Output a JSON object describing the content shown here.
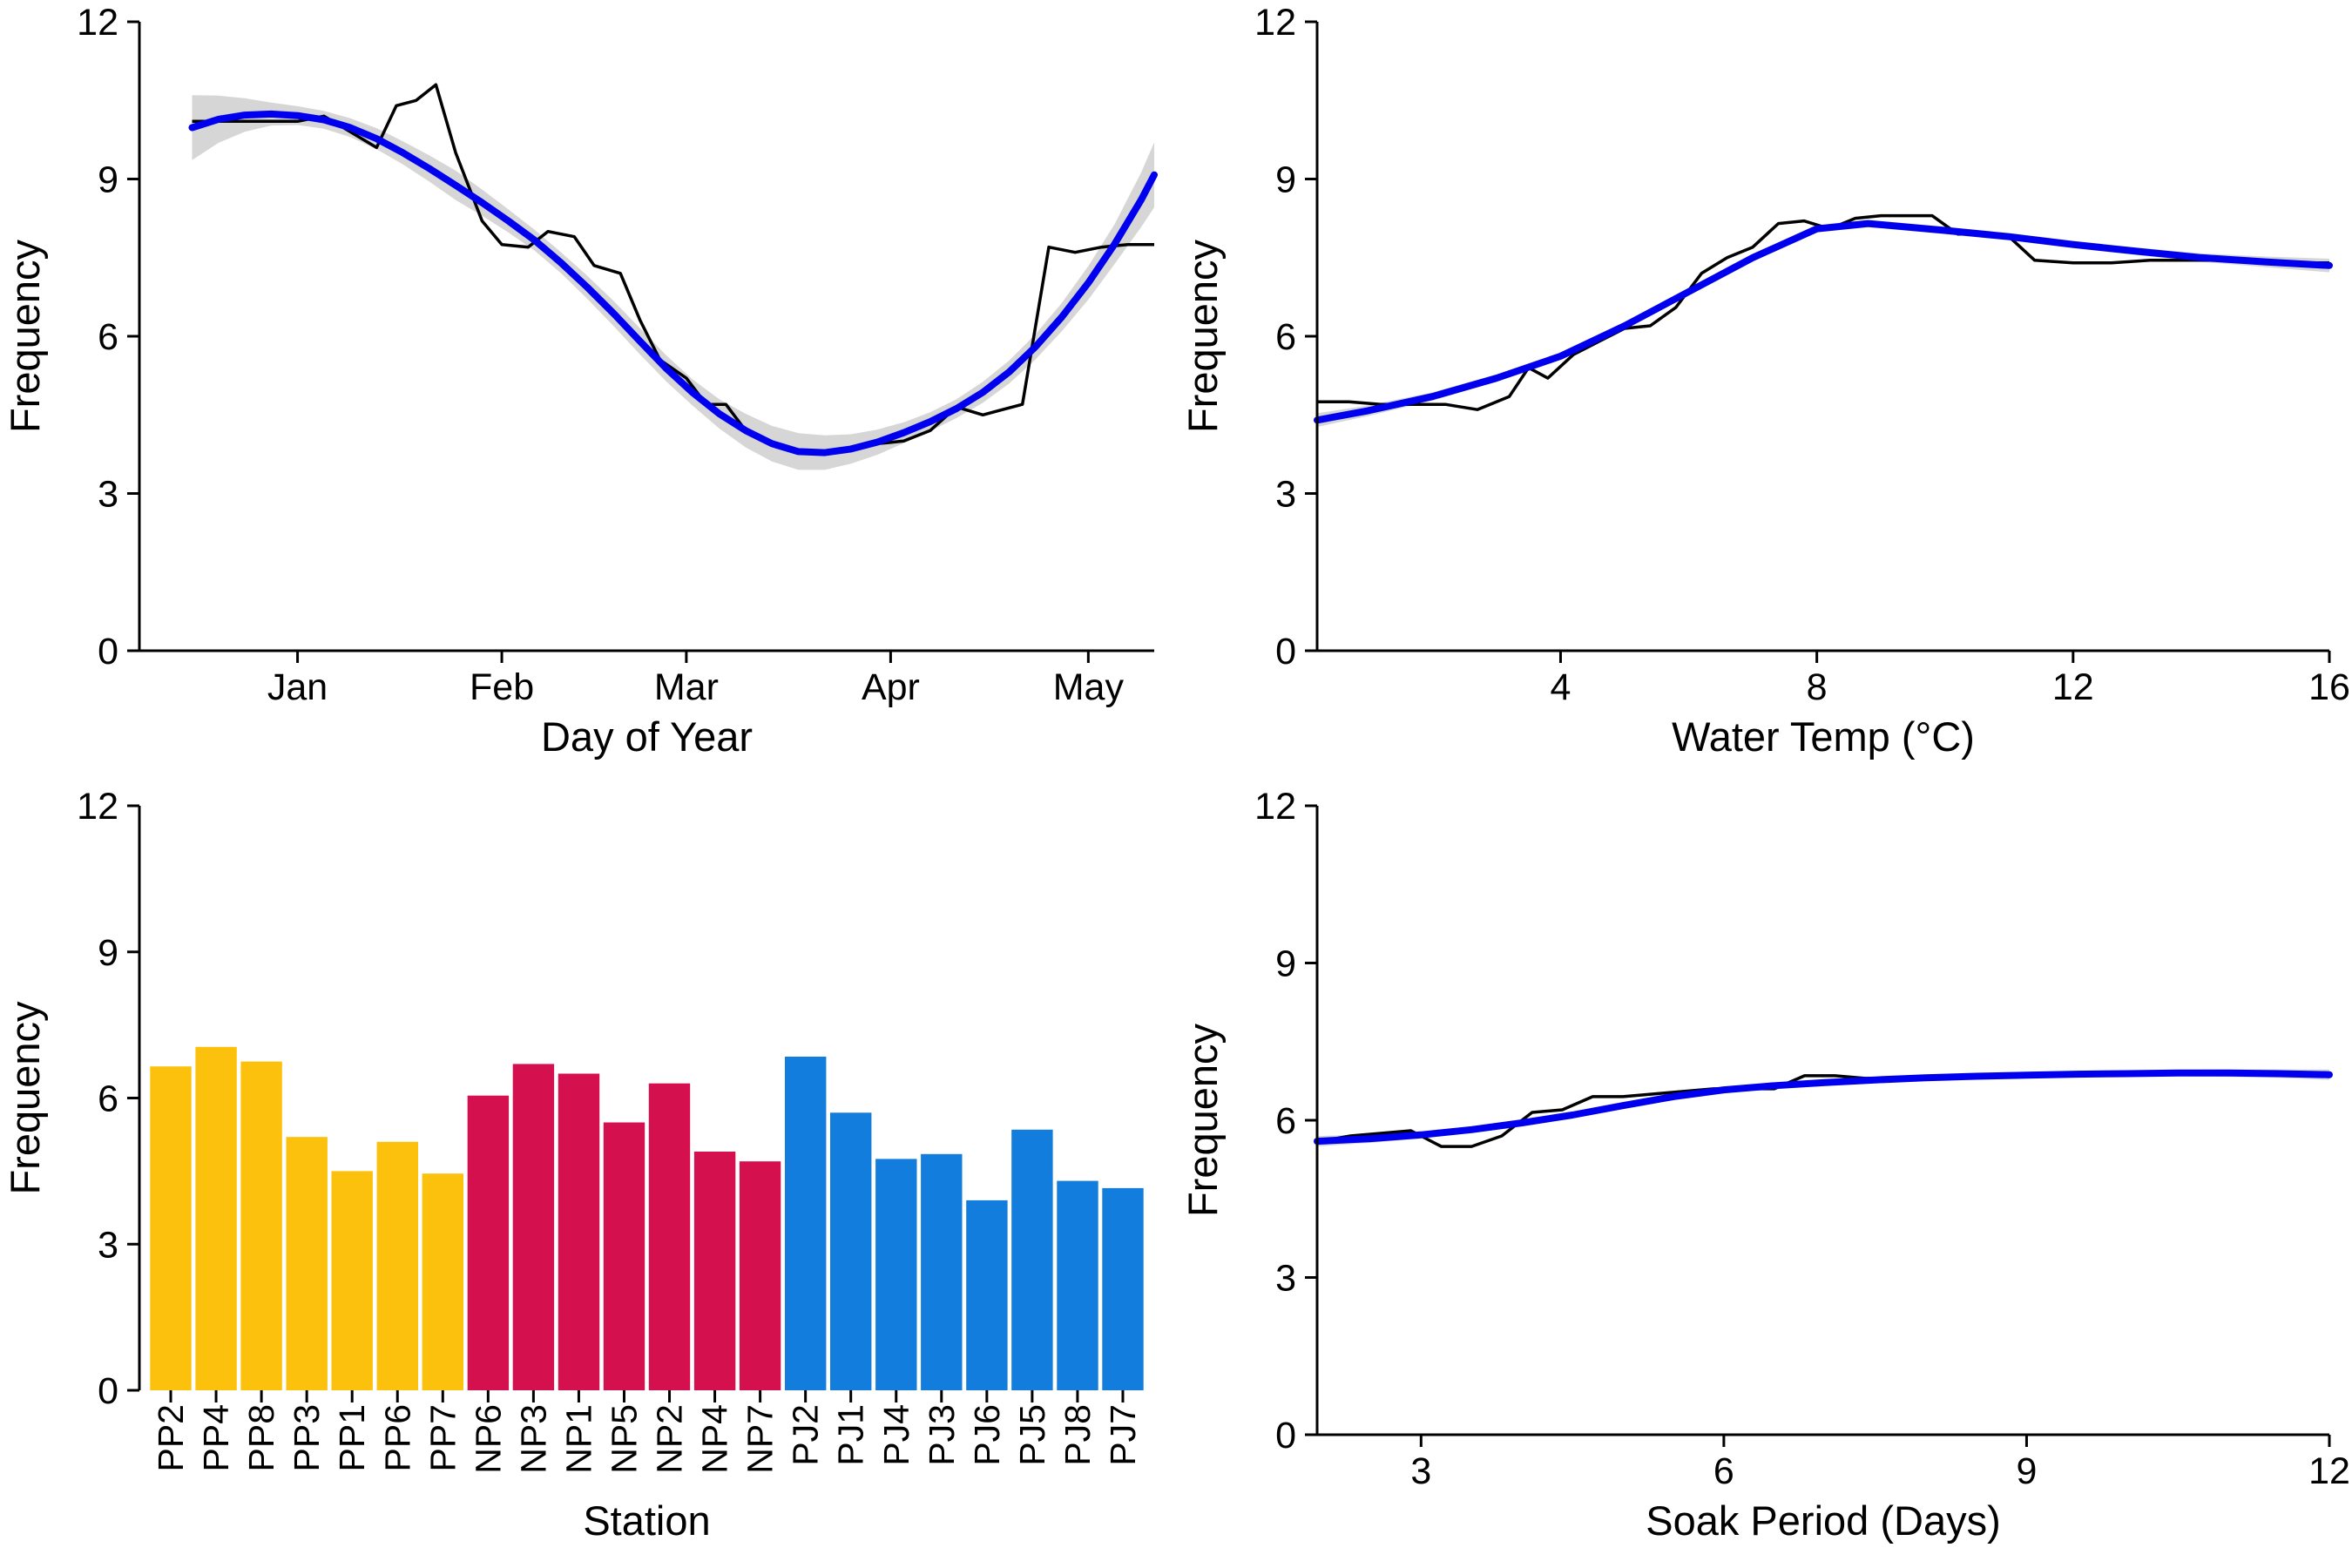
{
  "chart_data": [
    {
      "type": "line",
      "xlabel": "Day of Year",
      "ylabel": "Frequency",
      "ylim": [
        0,
        12
      ],
      "yticks": [
        0,
        3,
        6,
        9,
        12
      ],
      "xaxis_kind": "month_day",
      "xlim": [
        -24,
        130
      ],
      "xticks": [
        {
          "value": 0,
          "label": "Jan"
        },
        {
          "value": 31,
          "label": "Feb"
        },
        {
          "value": 59,
          "label": "Mar"
        },
        {
          "value": 90,
          "label": "Apr"
        },
        {
          "value": 120,
          "label": "May"
        }
      ],
      "grid": false,
      "series": [
        {
          "role": "observed",
          "color": "#000000",
          "x": [
            -16,
            -12,
            -8,
            -4,
            0,
            4,
            8,
            12,
            15,
            18,
            21,
            24,
            28,
            31,
            35,
            38,
            42,
            45,
            49,
            52,
            55,
            59,
            62,
            65,
            68,
            72,
            76,
            80,
            84,
            88,
            92,
            96,
            100,
            104,
            107,
            110,
            114,
            118,
            122,
            126,
            130
          ],
          "y": [
            10.1,
            10.1,
            10.1,
            10.1,
            10.1,
            10.2,
            9.9,
            9.6,
            10.4,
            10.5,
            10.8,
            9.5,
            8.2,
            7.75,
            7.7,
            8.0,
            7.9,
            7.35,
            7.2,
            6.3,
            5.55,
            5.2,
            4.7,
            4.7,
            4.2,
            3.95,
            3.8,
            3.8,
            3.85,
            3.95,
            4.0,
            4.2,
            4.65,
            4.5,
            4.6,
            4.7,
            7.7,
            7.6,
            7.7,
            7.75,
            7.75
          ]
        },
        {
          "role": "smoothed",
          "color": "#0000ee",
          "x": [
            -16,
            -12,
            -8,
            -4,
            0,
            4,
            8,
            12,
            16,
            20,
            24,
            28,
            32,
            36,
            40,
            44,
            48,
            52,
            56,
            60,
            64,
            68,
            72,
            76,
            80,
            84,
            88,
            92,
            96,
            100,
            104,
            108,
            112,
            116,
            120,
            124,
            128,
            130
          ],
          "y": [
            9.98,
            10.14,
            10.22,
            10.24,
            10.21,
            10.13,
            9.98,
            9.77,
            9.5,
            9.2,
            8.88,
            8.55,
            8.2,
            7.83,
            7.4,
            6.93,
            6.43,
            5.9,
            5.38,
            4.92,
            4.52,
            4.2,
            3.95,
            3.8,
            3.78,
            3.85,
            3.98,
            4.16,
            4.37,
            4.62,
            4.93,
            5.32,
            5.8,
            6.37,
            7.02,
            7.76,
            8.6,
            9.08
          ],
          "ci_half_width": [
            0.62,
            0.45,
            0.32,
            0.22,
            0.18,
            0.17,
            0.18,
            0.2,
            0.22,
            0.25,
            0.28,
            0.25,
            0.22,
            0.2,
            0.2,
            0.22,
            0.24,
            0.25,
            0.25,
            0.25,
            0.28,
            0.32,
            0.34,
            0.35,
            0.33,
            0.28,
            0.24,
            0.2,
            0.18,
            0.18,
            0.2,
            0.22,
            0.24,
            0.27,
            0.32,
            0.38,
            0.52,
            0.62
          ]
        }
      ]
    },
    {
      "type": "line",
      "xlabel": "Water Temp (°C)",
      "ylabel": "Frequency",
      "ylim": [
        0,
        12
      ],
      "yticks": [
        0,
        3,
        6,
        9,
        12
      ],
      "xlim": [
        0.2,
        16
      ],
      "xticks": [
        {
          "value": 4,
          "label": "4"
        },
        {
          "value": 8,
          "label": "8"
        },
        {
          "value": 12,
          "label": "12"
        },
        {
          "value": 16,
          "label": "16"
        }
      ],
      "grid": false,
      "series": [
        {
          "role": "observed",
          "color": "#000000",
          "x": [
            0.2,
            0.7,
            1.2,
            1.7,
            2.2,
            2.7,
            3.2,
            3.5,
            3.8,
            4.2,
            4.6,
            5.0,
            5.4,
            5.8,
            6.2,
            6.6,
            7.0,
            7.4,
            7.8,
            8.2,
            8.6,
            9.0,
            9.4,
            9.8,
            10.2,
            10.6,
            11.0,
            11.4,
            12.0,
            12.6,
            13.2,
            13.8,
            14.4,
            15.0,
            15.6,
            16.0
          ],
          "y": [
            4.75,
            4.75,
            4.7,
            4.7,
            4.7,
            4.6,
            4.85,
            5.4,
            5.2,
            5.65,
            5.9,
            6.15,
            6.2,
            6.55,
            7.2,
            7.5,
            7.7,
            8.15,
            8.2,
            8.05,
            8.25,
            8.3,
            8.3,
            8.3,
            7.95,
            7.95,
            7.9,
            7.45,
            7.4,
            7.4,
            7.45,
            7.45,
            7.45,
            7.4,
            7.4,
            7.4
          ]
        },
        {
          "role": "smoothed",
          "color": "#0000ee",
          "x": [
            0.2,
            1.0,
            2.0,
            3.0,
            4.0,
            5.0,
            6.0,
            7.0,
            8.0,
            8.8,
            10.0,
            11.0,
            12.0,
            13.0,
            14.0,
            15.0,
            16.0
          ],
          "y": [
            4.4,
            4.58,
            4.85,
            5.2,
            5.62,
            6.2,
            6.85,
            7.5,
            8.05,
            8.15,
            8.02,
            7.9,
            7.75,
            7.62,
            7.5,
            7.42,
            7.35
          ],
          "ci_half_width": [
            0.13,
            0.1,
            0.08,
            0.07,
            0.07,
            0.07,
            0.07,
            0.07,
            0.07,
            0.07,
            0.07,
            0.07,
            0.07,
            0.07,
            0.08,
            0.1,
            0.13
          ]
        }
      ]
    },
    {
      "type": "bar",
      "xlabel": "Station",
      "ylabel": "Frequency",
      "ylim": [
        0,
        12
      ],
      "yticks": [
        0,
        3,
        6,
        9,
        12
      ],
      "grid": false,
      "categories": [
        "PP2",
        "PP4",
        "PP8",
        "PP3",
        "PP1",
        "PP6",
        "PP7",
        "NP6",
        "NP3",
        "NP1",
        "NP5",
        "NP2",
        "NP4",
        "NP7",
        "PJ2",
        "PJ1",
        "PJ4",
        "PJ3",
        "PJ6",
        "PJ5",
        "PJ8",
        "PJ7"
      ],
      "values": [
        6.65,
        7.05,
        6.75,
        5.2,
        4.5,
        5.1,
        4.45,
        6.05,
        6.7,
        6.5,
        5.5,
        6.3,
        4.9,
        4.7,
        6.85,
        5.7,
        4.75,
        4.85,
        3.9,
        5.35,
        4.3,
        4.15
      ],
      "colors": [
        "#fcc10d",
        "#fcc10d",
        "#fcc10d",
        "#fcc10d",
        "#fcc10d",
        "#fcc10d",
        "#fcc10d",
        "#d5104f",
        "#d5104f",
        "#d5104f",
        "#d5104f",
        "#d5104f",
        "#d5104f",
        "#d5104f",
        "#127ddc",
        "#127ddc",
        "#127ddc",
        "#127ddc",
        "#127ddc",
        "#127ddc",
        "#127ddc",
        "#127ddc"
      ]
    },
    {
      "type": "line",
      "xlabel": "Soak Period (Days)",
      "ylabel": "Frequency",
      "ylim": [
        0,
        12
      ],
      "yticks": [
        0,
        3,
        6,
        9,
        12
      ],
      "xlim": [
        1.97,
        12
      ],
      "xticks": [
        {
          "value": 3,
          "label": "3"
        },
        {
          "value": 6,
          "label": "6"
        },
        {
          "value": 9,
          "label": "9"
        },
        {
          "value": 12,
          "label": "12"
        }
      ],
      "grid": false,
      "series": [
        {
          "role": "observed",
          "color": "#000000",
          "x": [
            2.0,
            2.3,
            2.6,
            2.9,
            3.2,
            3.5,
            3.8,
            4.1,
            4.4,
            4.7,
            5.0,
            5.3,
            5.6,
            5.9,
            6.2,
            6.5,
            6.8,
            7.1,
            7.4,
            7.7,
            8.0,
            8.3,
            8.6,
            8.9
          ],
          "y": [
            5.6,
            5.7,
            5.75,
            5.8,
            5.5,
            5.5,
            5.7,
            6.15,
            6.2,
            6.45,
            6.45,
            6.5,
            6.55,
            6.6,
            6.6,
            6.6,
            6.85,
            6.85,
            6.8,
            6.8,
            6.8,
            6.8,
            6.85,
            6.85
          ]
        },
        {
          "role": "smoothed",
          "color": "#0000ee",
          "x": [
            1.97,
            2.5,
            3.0,
            3.5,
            4.0,
            4.5,
            5.0,
            5.5,
            6.0,
            6.5,
            7.0,
            7.5,
            8.0,
            8.5,
            9.0,
            9.5,
            10.0,
            10.5,
            11.0,
            11.5,
            12.0
          ],
          "y": [
            5.6,
            5.65,
            5.72,
            5.82,
            5.95,
            6.1,
            6.28,
            6.45,
            6.58,
            6.66,
            6.72,
            6.77,
            6.81,
            6.84,
            6.86,
            6.88,
            6.89,
            6.9,
            6.9,
            6.89,
            6.87
          ],
          "ci_half_width": [
            0.1,
            0.08,
            0.07,
            0.06,
            0.06,
            0.06,
            0.06,
            0.06,
            0.06,
            0.06,
            0.06,
            0.06,
            0.06,
            0.06,
            0.06,
            0.06,
            0.06,
            0.06,
            0.07,
            0.08,
            0.1
          ]
        }
      ]
    }
  ]
}
